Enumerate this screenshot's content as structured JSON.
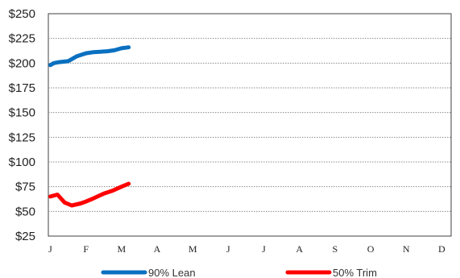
{
  "chart_data": {
    "type": "line",
    "title": "",
    "xlabel": "",
    "ylabel": "",
    "categories": [
      "J",
      "F",
      "M",
      "A",
      "M",
      "J",
      "J",
      "A",
      "S",
      "O",
      "N",
      "D"
    ],
    "ylim": [
      25,
      250
    ],
    "yticks": [
      "$250",
      "$225",
      "$200",
      "$175",
      "$150",
      "$125",
      "$100",
      "$75",
      "$50",
      "$25"
    ],
    "grid": "horizontal dotted",
    "legend": "bottom",
    "series": [
      {
        "name": "90% Lean",
        "color": "#0a70c0",
        "x": [
          0,
          0.1,
          0.25,
          0.5,
          0.75,
          1.0,
          1.2,
          1.4,
          1.6,
          1.8,
          2.0,
          2.2
        ],
        "y": [
          198,
          200,
          201,
          202,
          207,
          210,
          211,
          211.5,
          212,
          213,
          215,
          216
        ]
      },
      {
        "name": "50% Trim",
        "color": "#ff0000",
        "x": [
          0,
          0.2,
          0.4,
          0.6,
          0.85,
          1.0,
          1.2,
          1.5,
          1.75,
          2.0,
          2.2
        ],
        "y": [
          65,
          67,
          59,
          56,
          58,
          60,
          63,
          68,
          71,
          75,
          78
        ]
      }
    ]
  }
}
